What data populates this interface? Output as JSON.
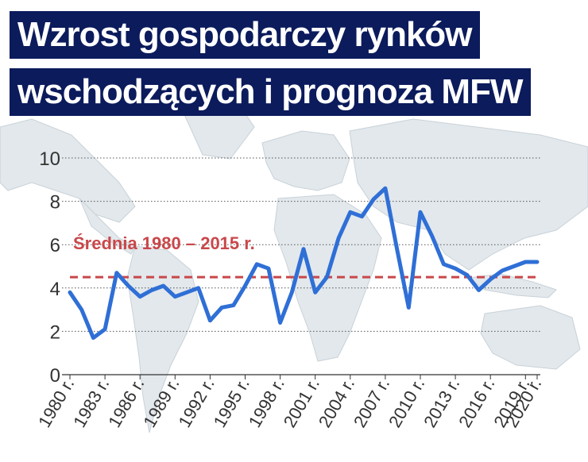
{
  "title": {
    "line1": "Wzrost gospodarczy rynków",
    "line2": "wschodzących i prognoza MFW"
  },
  "colors": {
    "title_bg": "#0b1b5c",
    "title_text": "#ffffff",
    "series": "#2f6fd6",
    "average_line": "#c9474a",
    "map_land": "#e2e8ec",
    "map_sea": "#ffffff",
    "grid": "#555555"
  },
  "chart_data": {
    "type": "line",
    "ylim": [
      0,
      10
    ],
    "yticks": [
      0,
      2,
      4,
      6,
      8,
      10
    ],
    "grid": "horizontal dotted",
    "x_tick_labels": [
      "1980 r.",
      "1983 r.",
      "1986 r.",
      "1989 r.",
      "1992 r.",
      "1995 r.",
      "1998 r.",
      "2001 r.",
      "2004 r.",
      "2007 r.",
      "2010 r.",
      "2013 r.",
      "2016 r.",
      "2019 r.",
      "2020 r."
    ],
    "x_tick_years": [
      1980,
      1983,
      1986,
      1989,
      1992,
      1995,
      1998,
      2001,
      2004,
      2007,
      2010,
      2013,
      2016,
      2019,
      2020
    ],
    "x": [
      1980,
      1981,
      1982,
      1983,
      1984,
      1985,
      1986,
      1987,
      1988,
      1989,
      1990,
      1991,
      1992,
      1993,
      1994,
      1995,
      1996,
      1997,
      1998,
      1999,
      2000,
      2001,
      2002,
      2003,
      2004,
      2005,
      2006,
      2007,
      2008,
      2009,
      2010,
      2011,
      2012,
      2013,
      2014,
      2015,
      2016,
      2017,
      2018,
      2019,
      2020
    ],
    "values": [
      3.8,
      3.0,
      1.7,
      2.1,
      4.7,
      4.1,
      3.6,
      3.9,
      4.1,
      3.6,
      3.8,
      4.0,
      2.5,
      3.1,
      3.2,
      4.1,
      5.1,
      4.9,
      2.4,
      3.8,
      5.8,
      3.8,
      4.5,
      6.3,
      7.5,
      7.3,
      8.1,
      8.6,
      5.8,
      3.1,
      7.5,
      6.4,
      5.1,
      4.9,
      4.6,
      3.9,
      4.4,
      4.8,
      5.0,
      5.2,
      5.2
    ],
    "average": {
      "label": "Średnia 1980 – 2015 r.",
      "value": 4.5
    }
  }
}
